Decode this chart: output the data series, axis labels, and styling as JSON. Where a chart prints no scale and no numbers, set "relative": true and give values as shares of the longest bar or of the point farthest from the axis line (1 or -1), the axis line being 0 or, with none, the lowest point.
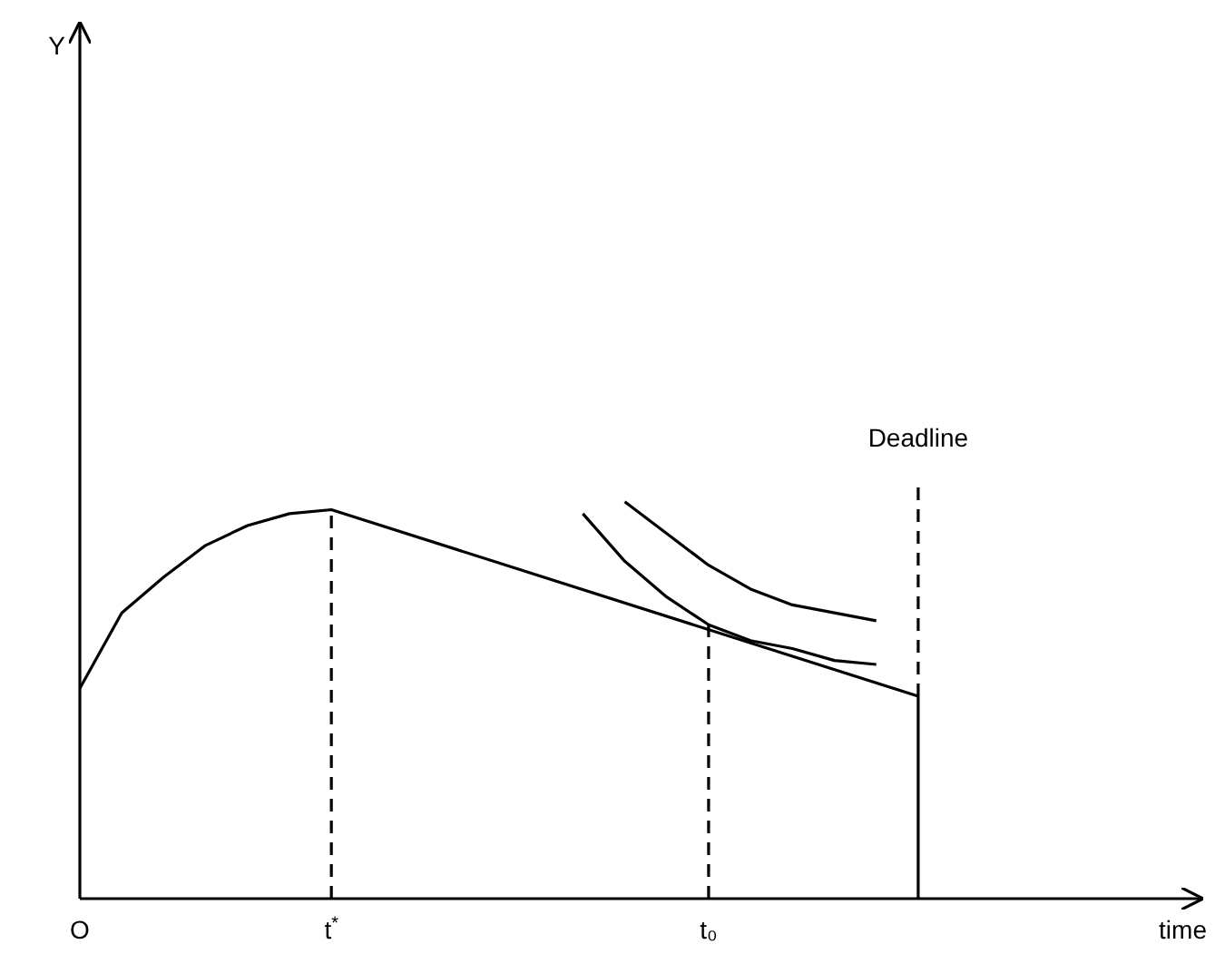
{
  "chart_data": {
    "type": "line",
    "relative": true,
    "xlabel": "time",
    "categories": [
      "O",
      null,
      null,
      null,
      null,
      null,
      "t$^{*}$",
      null,
      null,
      null,
      null,
      null,
      null,
      null,
      null,
      "t₀",
      null,
      null,
      null,
      null,
      null,
      null,
      null,
      null,
      null,
      null,
      null
    ],
    "series": [
      {
        "color": "#000000",
        "line_style": "solid",
        "values": [
          0.53,
          0.72,
          0.81,
          0.89,
          0.94,
          0.97,
          0.98,
          null,
          null,
          null,
          null,
          null,
          null,
          null,
          null,
          null,
          null,
          null,
          null,
          null,
          0.51,
          null,
          null,
          null,
          null,
          null,
          null
        ]
      },
      {
        "color": "#000000",
        "line_style": "solid",
        "values": [
          null,
          null,
          null,
          null,
          null,
          null,
          null,
          null,
          null,
          null,
          null,
          null,
          0.97,
          0.85,
          0.76,
          0.69,
          0.65,
          0.63,
          0.6,
          0.59,
          null,
          null,
          null,
          null,
          null,
          null,
          null
        ]
      },
      {
        "color": "#000000",
        "line_style": "solid",
        "values": [
          null,
          null,
          null,
          null,
          null,
          null,
          null,
          null,
          null,
          null,
          null,
          null,
          null,
          1,
          0.92,
          0.84,
          0.78,
          0.74,
          0.72,
          0.7,
          null,
          null,
          null,
          null,
          null,
          null,
          null
        ]
      }
    ],
    "ref_lines": [
      {
        "axis": "x",
        "value": "t$^{*}$",
        "line_style": "dashed",
        "color": "#000000"
      },
      {
        "axis": "x",
        "value": "t₀",
        "line_style": "dashed",
        "color": "#000000"
      }
    ],
    "annotations": [
      "Deadline",
      "Y"
    ],
    "marker": "none",
    "grid": false,
    "legend": false
  }
}
